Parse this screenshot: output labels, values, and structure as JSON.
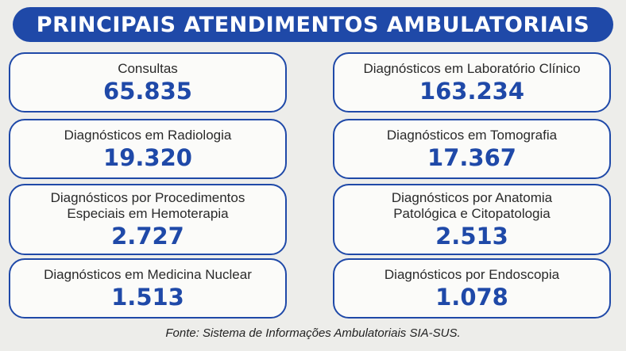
{
  "title": "PRINCIPAIS ATENDIMENTOS AMBULATORIAIS",
  "cards": [
    {
      "label": "Consultas",
      "value": "65.835"
    },
    {
      "label": "Diagnósticos em Laboratório Clínico",
      "value": "163.234"
    },
    {
      "label": "Diagnósticos em Radiologia",
      "value": "19.320"
    },
    {
      "label": "Diagnósticos em Tomografia",
      "value": "17.367"
    },
    {
      "label": "Diagnósticos por Procedimentos\nEspeciais em Hemoterapia",
      "value": "2.727"
    },
    {
      "label": "Diagnósticos por Anatomia\nPatológica e Citopatologia",
      "value": "2.513"
    },
    {
      "label": "Diagnósticos em Medicina Nuclear",
      "value": "1.513"
    },
    {
      "label": "Diagnósticos por Endoscopia",
      "value": "1.078"
    }
  ],
  "source": "Fonte: Sistema de Informações Ambulatoriais SIA-SUS.",
  "colors": {
    "accent": "#1f49a8",
    "background": "#ededea",
    "card_fill": "#fbfbf9",
    "label_text": "#2a2a2a"
  }
}
